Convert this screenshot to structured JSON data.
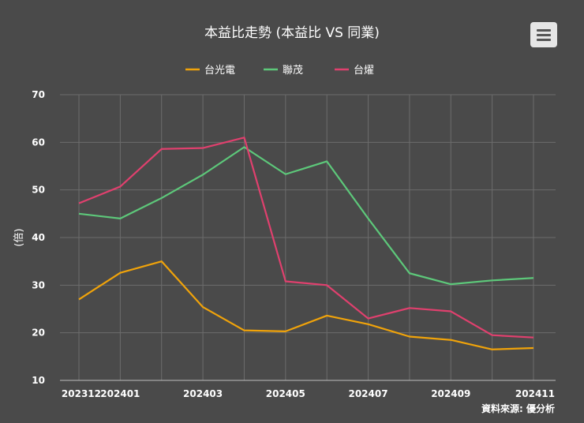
{
  "chart_data": {
    "type": "line",
    "title": "本益比走勢 (本益比 VS 同業)",
    "ylabel": "(倍)",
    "ylim": [
      10,
      70
    ],
    "yticks": [
      10,
      20,
      30,
      40,
      50,
      60,
      70
    ],
    "x": [
      "202312",
      "202401",
      "202402",
      "202403",
      "202404",
      "202405",
      "202406",
      "202407",
      "202408",
      "202409",
      "202410",
      "202411"
    ],
    "xtick_labels": [
      "202312",
      "202401",
      "",
      "202403",
      "",
      "202405",
      "",
      "202407",
      "",
      "202409",
      "",
      "202411"
    ],
    "grid": true,
    "legend_position": "top",
    "series": [
      {
        "name": "台光電",
        "color": "#f0a30a",
        "values": [
          27.0,
          32.6,
          35.0,
          25.4,
          20.5,
          20.3,
          23.6,
          21.8,
          19.2,
          18.5,
          16.5,
          16.8
        ]
      },
      {
        "name": "聯茂",
        "color": "#5dc87a",
        "values": [
          45.0,
          44.0,
          48.3,
          53.2,
          59.0,
          53.3,
          56.0,
          44.0,
          32.5,
          30.2,
          31.0,
          31.5
        ]
      },
      {
        "name": "台燿",
        "color": "#e0406e",
        "values": [
          47.2,
          50.7,
          58.6,
          58.8,
          61.0,
          30.8,
          30.0,
          23.0,
          25.2,
          24.5,
          19.5,
          19.0
        ]
      }
    ],
    "source_note": "資料來源: 優分析"
  }
}
